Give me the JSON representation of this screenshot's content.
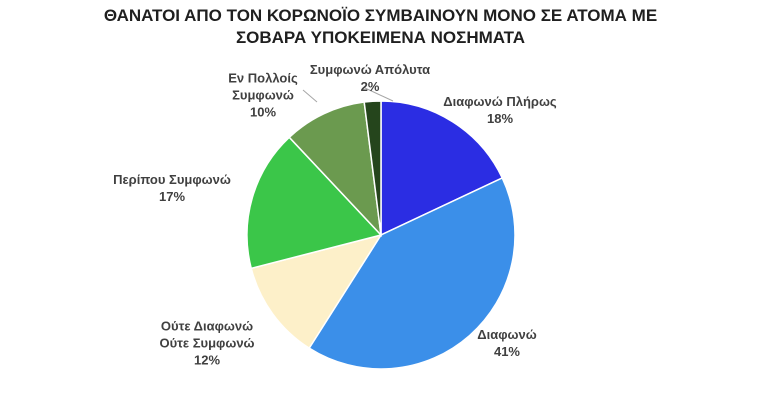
{
  "chart_data": {
    "type": "pie",
    "title": [
      "ΘΑΝΑΤΟΙ ΑΠΟ ΤΟΝ ΚΟΡΩΝΟΪΟ ΣΥΜΒΑΙΝΟΥΝ  ΜΟΝΟ ΣΕ ΑΤΟΜΑ ΜΕ",
      "ΣΟΒΑΡΑ ΥΠΟΚΕΙΜΕΝΑ ΝΟΣΗΜΑΤΑ"
    ],
    "categories": [
      "Διαφωνώ Πλήρως",
      "Διαφωνώ",
      "Ούτε Διαφωνώ Ούτε Συμφωνώ",
      "Περίπου Συμφωνώ",
      "Εν Πολλοίς Συμφωνώ",
      "Συμφωνώ Απόλυτα"
    ],
    "values": [
      18,
      41,
      12,
      17,
      10,
      2
    ],
    "value_labels": [
      "18%",
      "41%",
      "12%",
      "17%",
      "10%",
      "2%"
    ],
    "colors": [
      "#2b2de3",
      "#3b8fe9",
      "#fdf0c9",
      "#3bc649",
      "#6b9a4f",
      "#25451c"
    ]
  }
}
